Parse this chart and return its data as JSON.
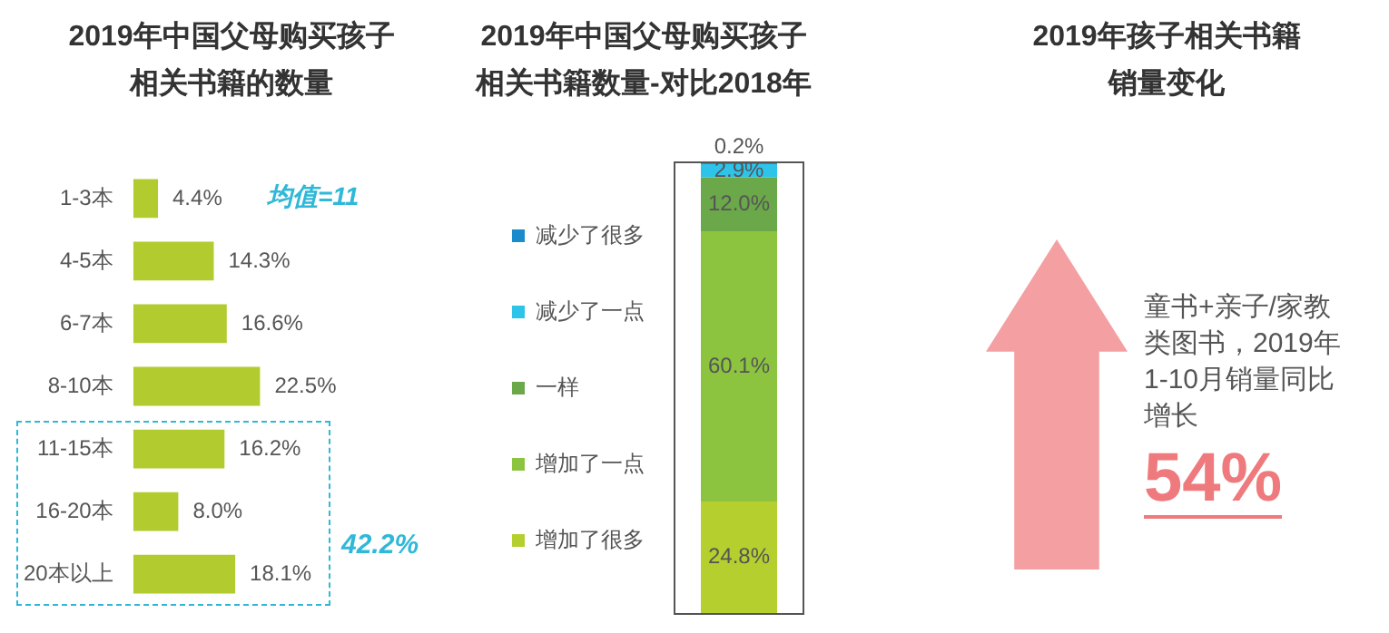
{
  "chart_data": [
    {
      "type": "bar",
      "orientation": "horizontal",
      "title": "2019年中国父母购买孩子相关书籍的数量",
      "categories": [
        "1-3本",
        "4-5本",
        "6-7本",
        "8-10本",
        "11-15本",
        "16-20本",
        "20本以上"
      ],
      "values": [
        4.4,
        14.3,
        16.6,
        22.5,
        16.2,
        8.0,
        18.1
      ],
      "color": "#b2cc2f",
      "value_labels": [
        "4.4%",
        "14.3%",
        "16.6%",
        "22.5%",
        "16.2%",
        "8.0%",
        "18.1%"
      ],
      "annotations": [
        "均值=11",
        "42.2%"
      ],
      "grid": false,
      "legend": false
    },
    {
      "type": "bar",
      "stacked": true,
      "title": "2019年中国父母购买孩子相关书籍数量-对比2018年",
      "categories": [
        null
      ],
      "legend": "left",
      "grid": false,
      "series": [
        {
          "name": "增加了很多",
          "color": "#b5cf2f",
          "values": [
            24.8
          ],
          "value_labels": [
            "24.8%"
          ]
        },
        {
          "name": "增加了一点",
          "color": "#8cc43f",
          "values": [
            60.1
          ],
          "value_labels": [
            "60.1%"
          ]
        },
        {
          "name": "一样",
          "color": "#6aa84a",
          "values": [
            12.0
          ],
          "value_labels": [
            "12.0%"
          ]
        },
        {
          "name": "减少了一点",
          "color": "#2ec4ea",
          "values": [
            2.9
          ],
          "value_labels": [
            "2.9%"
          ]
        },
        {
          "name": "减少了很多",
          "color": "#1a8ccc",
          "values": [
            0.2
          ],
          "value_labels": [
            "0.2%"
          ]
        }
      ]
    },
    {
      "type": "other",
      "title": "2019年孩子相关书籍销量变化",
      "annotations": [
        "童书+亲子/家教类图书，2019年1-10月销量同比增长",
        "54%"
      ]
    }
  ]
}
